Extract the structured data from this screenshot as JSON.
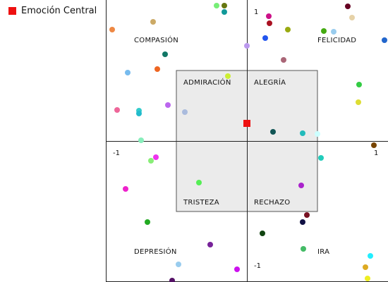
{
  "legend": {
    "label": "Emoción Central",
    "color": "#ee1111"
  },
  "chart_data": {
    "type": "scatter",
    "title": "",
    "xlabel": "",
    "ylabel": "",
    "xlim": [
      -1,
      1
    ],
    "ylim": [
      -1,
      1
    ],
    "grid": false,
    "legend_position": "top-left",
    "tick_labels": {
      "x_min": "-1",
      "x_max": "1",
      "y_max": "1",
      "y_min": "-1"
    },
    "region_labels": [
      {
        "text": "COMPASIÓN",
        "x": -0.8,
        "y": 0.72
      },
      {
        "text": "FELICIDAD",
        "x": 0.5,
        "y": 0.72
      },
      {
        "text": "ADMIRACIÓN",
        "x": -0.45,
        "y": 0.42
      },
      {
        "text": "ALEGRÍA",
        "x": 0.05,
        "y": 0.42
      },
      {
        "text": "TRISTEZA",
        "x": -0.45,
        "y": -0.43
      },
      {
        "text": "RECHAZO",
        "x": 0.05,
        "y": -0.43
      },
      {
        "text": "DEPRESIÓN",
        "x": -0.8,
        "y": -0.78
      },
      {
        "text": "IRA",
        "x": 0.5,
        "y": -0.78
      }
    ],
    "inner_box": {
      "x0": -0.5,
      "x1": 0.5,
      "y0": -0.5,
      "y1": 0.5,
      "fill": "#ebebeb"
    },
    "central_point": {
      "x": 0.0,
      "y": 0.125,
      "color": "#ee1111"
    },
    "points": [
      {
        "x": -0.215,
        "y": 0.96,
        "color": "#77ee77"
      },
      {
        "x": -0.16,
        "y": 0.96,
        "color": "#667711"
      },
      {
        "x": -0.16,
        "y": 0.915,
        "color": "#119999"
      },
      {
        "x": -0.665,
        "y": 0.845,
        "color": "#ccaa66"
      },
      {
        "x": -0.955,
        "y": 0.79,
        "color": "#ee8844"
      },
      {
        "x": 0.155,
        "y": 0.885,
        "color": "#cc1188"
      },
      {
        "x": 0.16,
        "y": 0.835,
        "color": "#aa1122"
      },
      {
        "x": 0.715,
        "y": 0.955,
        "color": "#660022"
      },
      {
        "x": 0.745,
        "y": 0.875,
        "color": "#e6d2a8"
      },
      {
        "x": 0.29,
        "y": 0.79,
        "color": "#99aa11"
      },
      {
        "x": 0.545,
        "y": 0.78,
        "color": "#44aa11"
      },
      {
        "x": 0.615,
        "y": 0.775,
        "color": "#99ccee"
      },
      {
        "x": 0.13,
        "y": 0.73,
        "color": "#2255ee"
      },
      {
        "x": 0.975,
        "y": 0.715,
        "color": "#2266cc"
      },
      {
        "x": 0.0,
        "y": 0.675,
        "color": "#bb99ee"
      },
      {
        "x": 0.26,
        "y": 0.575,
        "color": "#aa6677"
      },
      {
        "x": -0.58,
        "y": 0.615,
        "color": "#117766"
      },
      {
        "x": -0.635,
        "y": 0.51,
        "color": "#ee6622"
      },
      {
        "x": -0.845,
        "y": 0.485,
        "color": "#77bbee"
      },
      {
        "x": -0.135,
        "y": 0.46,
        "color": "#ccee33"
      },
      {
        "x": 0.795,
        "y": 0.4,
        "color": "#33cc44"
      },
      {
        "x": -0.56,
        "y": 0.255,
        "color": "#bb66ee"
      },
      {
        "x": -0.44,
        "y": 0.205,
        "color": "#aabbdd"
      },
      {
        "x": -0.92,
        "y": 0.22,
        "color": "#ee6699"
      },
      {
        "x": -0.765,
        "y": 0.215,
        "color": "#33cccc"
      },
      {
        "x": -0.765,
        "y": 0.195,
        "color": "#22bbcc"
      },
      {
        "x": 0.79,
        "y": 0.275,
        "color": "#dddd33"
      },
      {
        "x": 0.185,
        "y": 0.065,
        "color": "#115555"
      },
      {
        "x": 0.395,
        "y": 0.055,
        "color": "#22bbbb"
      },
      {
        "x": 0.5,
        "y": 0.05,
        "color": "#ccffff"
      },
      {
        "x": -0.75,
        "y": 0.005,
        "color": "#88eebb"
      },
      {
        "x": 0.9,
        "y": -0.03,
        "color": "#774400"
      },
      {
        "x": -0.645,
        "y": -0.115,
        "color": "#ee33ee"
      },
      {
        "x": -0.68,
        "y": -0.14,
        "color": "#88ee77"
      },
      {
        "x": 0.525,
        "y": -0.12,
        "color": "#22ccbb"
      },
      {
        "x": -0.86,
        "y": -0.34,
        "color": "#ee22cc"
      },
      {
        "x": -0.34,
        "y": -0.295,
        "color": "#55ee55"
      },
      {
        "x": 0.385,
        "y": -0.315,
        "color": "#aa22cc"
      },
      {
        "x": 0.425,
        "y": -0.525,
        "color": "#771122"
      },
      {
        "x": 0.395,
        "y": -0.575,
        "color": "#111144"
      },
      {
        "x": -0.705,
        "y": -0.575,
        "color": "#22aa22"
      },
      {
        "x": 0.11,
        "y": -0.655,
        "color": "#114411"
      },
      {
        "x": -0.26,
        "y": -0.735,
        "color": "#772299"
      },
      {
        "x": 0.4,
        "y": -0.765,
        "color": "#44bb66"
      },
      {
        "x": 0.875,
        "y": -0.815,
        "color": "#22eeff"
      },
      {
        "x": -0.485,
        "y": -0.875,
        "color": "#99ccee"
      },
      {
        "x": -0.07,
        "y": -0.91,
        "color": "#cc11ee"
      },
      {
        "x": 0.84,
        "y": -0.895,
        "color": "#ddaa22"
      },
      {
        "x": -0.53,
        "y": -0.99,
        "color": "#551166"
      },
      {
        "x": 0.855,
        "y": -0.975,
        "color": "#eeee22"
      }
    ]
  }
}
